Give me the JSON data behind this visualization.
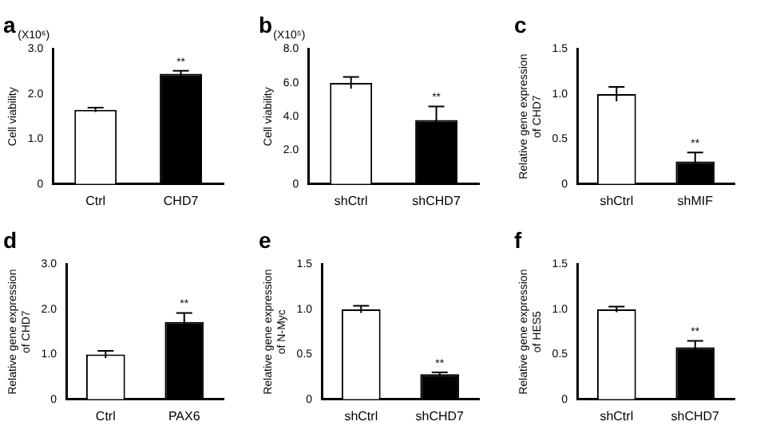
{
  "chart_data": [
    {
      "type": "bar",
      "title": "a",
      "ylabel": "Cell viability",
      "categories": [
        "Ctrl",
        "CHD7"
      ],
      "values": [
        1.65,
        2.45
      ],
      "errors": [
        0.05,
        0.07
      ],
      "colors": [
        "#ffffff",
        "#000000"
      ],
      "ylim": [
        0,
        3
      ],
      "yticks": [
        0,
        {
          "value": 1,
          "label": "1.0"
        },
        {
          "value": 2,
          "label": "2.0"
        },
        {
          "value": 3,
          "label": "3.0"
        }
      ],
      "annotations": [
        "(X10⁶)",
        {
          "text": "**",
          "x": "CHD7",
          "y": 2.52
        }
      ]
    },
    {
      "type": "bar",
      "title": "b",
      "ylabel": "Cell viability",
      "categories": [
        "shCtrl",
        "shCHD7"
      ],
      "values": [
        6.0,
        3.8
      ],
      "errors": [
        0.35,
        0.8
      ],
      "colors": [
        "#ffffff",
        "#000000"
      ],
      "ylim": [
        0,
        8
      ],
      "yticks": [
        0,
        {
          "value": 2,
          "label": "2.0"
        },
        {
          "value": 4,
          "label": "4.0"
        },
        {
          "value": 6,
          "label": "6.0"
        },
        {
          "value": 8,
          "label": "8.0"
        }
      ],
      "annotations": [
        "(X10⁵)",
        {
          "text": "**",
          "x": "shCHD7",
          "y": 4.6
        }
      ]
    },
    {
      "type": "bar",
      "title": "c",
      "ylabel": "Relative gene expression\nof CHD7",
      "categories": [
        "shCtrl",
        "shMIF"
      ],
      "values": [
        1.0,
        0.25
      ],
      "errors": [
        0.08,
        0.1
      ],
      "colors": [
        "#ffffff",
        "#000000"
      ],
      "ylim": [
        0,
        1.5
      ],
      "yticks": [
        0,
        0.5,
        {
          "value": 1,
          "label": "1.0"
        },
        1.5
      ],
      "annotations": [
        {
          "text": "**",
          "x": "shMIF",
          "y": 0.35
        }
      ]
    },
    {
      "type": "bar",
      "title": "d",
      "ylabel": "Relative gene expression\nof CHD7",
      "categories": [
        "Ctrl",
        "PAX6"
      ],
      "values": [
        1.0,
        1.72
      ],
      "errors": [
        0.08,
        0.2
      ],
      "colors": [
        "#ffffff",
        "#000000"
      ],
      "ylim": [
        0,
        3
      ],
      "yticks": [
        0,
        {
          "value": 1,
          "label": "1.0"
        },
        {
          "value": 2,
          "label": "2.0"
        },
        {
          "value": 3,
          "label": "3.0"
        }
      ],
      "annotations": [
        {
          "text": "**",
          "x": "PAX6",
          "y": 1.92
        }
      ]
    },
    {
      "type": "bar",
      "title": "e",
      "ylabel": "Relative gene expression\nof N-Myc",
      "categories": [
        "shCtrl",
        "shCHD7"
      ],
      "values": [
        1.0,
        0.28
      ],
      "errors": [
        0.04,
        0.02
      ],
      "colors": [
        "#ffffff",
        "#000000"
      ],
      "ylim": [
        0,
        1.5
      ],
      "yticks": [
        0,
        0.5,
        {
          "value": 1,
          "label": "1.0"
        },
        1.5
      ],
      "annotations": [
        {
          "text": "**",
          "x": "shCHD7",
          "y": 0.3
        }
      ]
    },
    {
      "type": "bar",
      "title": "f",
      "ylabel": "Relative gene expression\nof HES5",
      "categories": [
        "shCtrl",
        "shCHD7"
      ],
      "values": [
        1.0,
        0.58
      ],
      "errors": [
        0.03,
        0.07
      ],
      "colors": [
        "#ffffff",
        "#000000"
      ],
      "ylim": [
        0,
        1.5
      ],
      "yticks": [
        0,
        0.5,
        {
          "value": 1,
          "label": "1.0"
        },
        1.5
      ],
      "annotations": [
        {
          "text": "**",
          "x": "shCHD7",
          "y": 0.65
        }
      ]
    }
  ]
}
